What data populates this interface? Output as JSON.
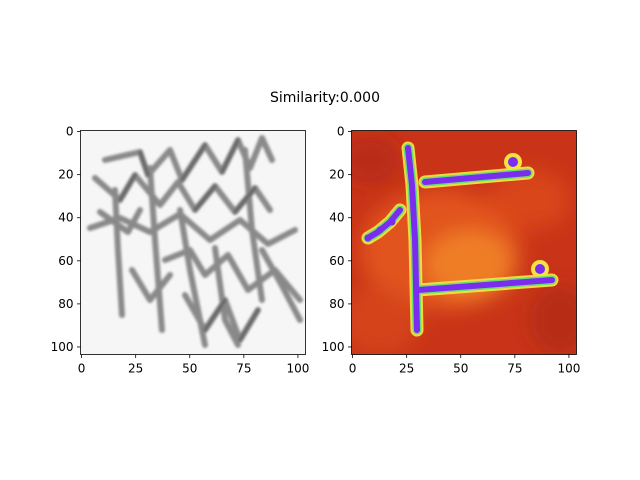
{
  "figure": {
    "title": "Similarity:0.000"
  },
  "panels": [
    {
      "name": "left",
      "colormap": "gray",
      "extent": [
        0,
        104
      ],
      "x_ticks": [
        "0",
        "25",
        "50",
        "75",
        "100"
      ],
      "y_ticks": [
        "0",
        "20",
        "40",
        "60",
        "80",
        "100"
      ],
      "x_tick_values": [
        0,
        25,
        50,
        75,
        100
      ],
      "y_tick_values": [
        0,
        20,
        40,
        60,
        80,
        100
      ]
    },
    {
      "name": "right",
      "colormap": "heat-overlay",
      "extent": [
        0,
        104
      ],
      "x_ticks": [
        "0",
        "25",
        "50",
        "75",
        "100"
      ],
      "y_ticks": [
        "0",
        "20",
        "40",
        "60",
        "80",
        "100"
      ],
      "x_tick_values": [
        0,
        25,
        50,
        75,
        100
      ],
      "y_tick_values": [
        0,
        20,
        40,
        60,
        80,
        100
      ]
    }
  ],
  "colors": {
    "stroke_gray": "#666666",
    "bg_gray": "#f6f6f6",
    "heat_dark": "#c4301b",
    "heat_mid": "#e0501d",
    "heat_bright": "#f07a23",
    "glyph_core": "#7b2cf0",
    "glyph_halo": "#f3e343"
  }
}
